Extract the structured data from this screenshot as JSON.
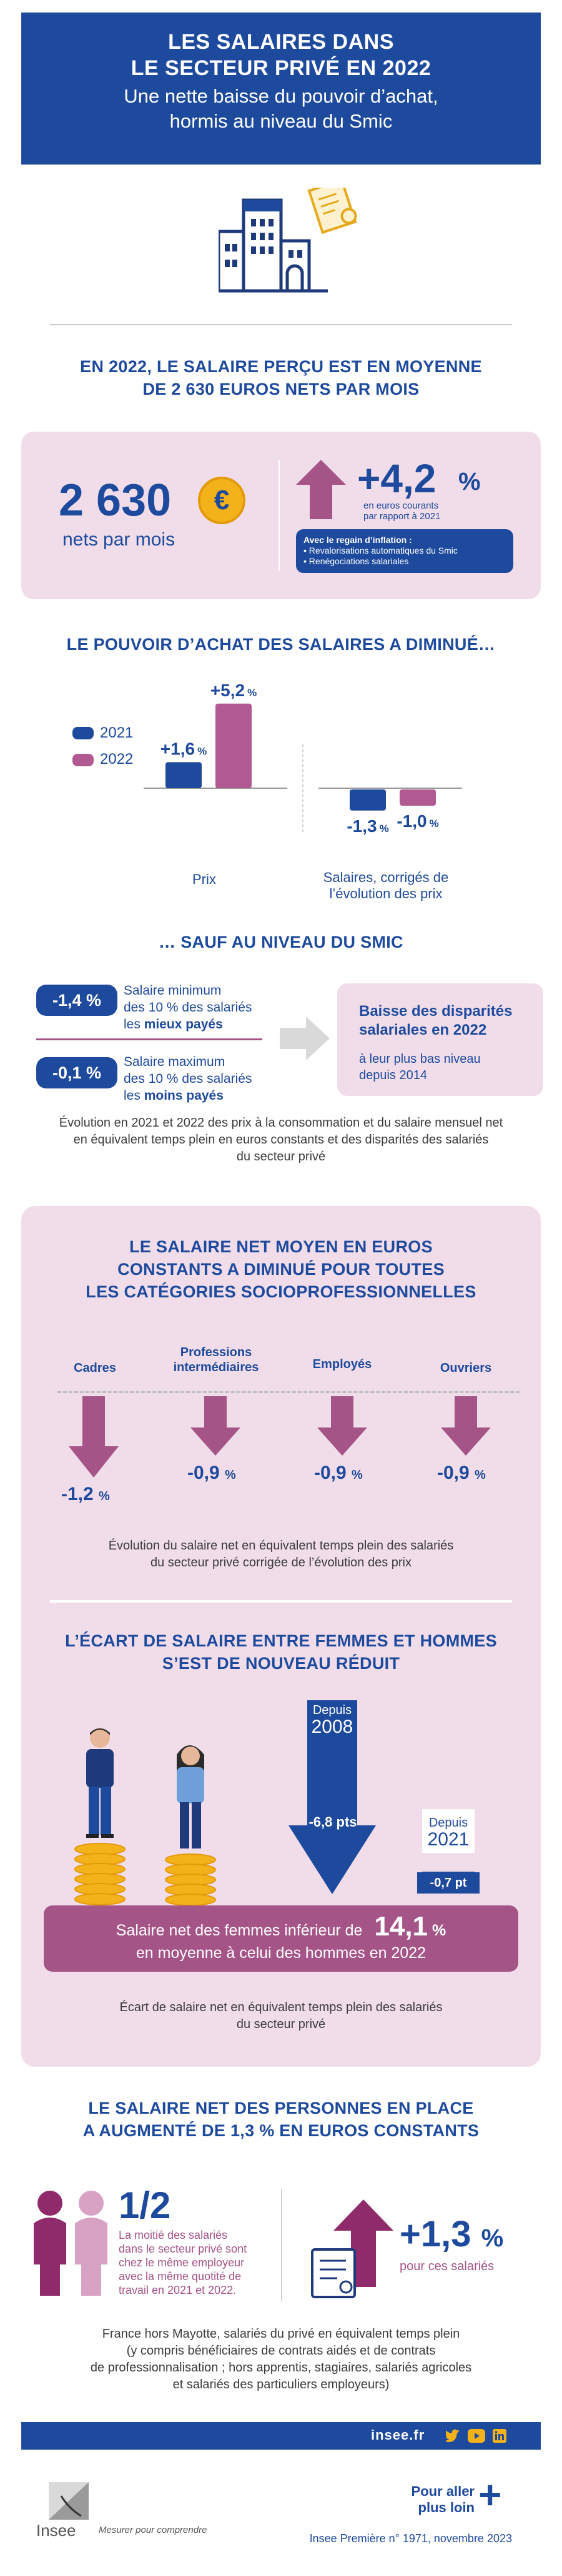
{
  "header": {
    "title_line1": "LES SALAIRES DANS",
    "title_line2": "LE SECTEUR PRIVÉ EN 2022",
    "subtitle_line1": "Une nette baisse du pouvoir d’achat,",
    "subtitle_line2": "hormis au niveau du Smic"
  },
  "section1": {
    "title_line1": "EN 2022, LE SALAIRE PERÇU EST EN MOYENNE",
    "title_line2": "DE 2 630 EUROS NETS PAR MOIS",
    "salary_value": "2 630",
    "salary_unit": "nets par mois",
    "euro_symbol": "€",
    "growth_value": "+4,2",
    "growth_pct": "%",
    "growth_note_line1": "en euros courants",
    "growth_note_line2": "par rapport à 2021",
    "inflation_box_title": "Avec le regain d’inflation :",
    "inflation_items": [
      "• Revalorisations automatiques du Smic",
      "• Renégociations salariales"
    ]
  },
  "section2": {
    "title": "LE POUVOIR D’ACHAT DES SALAIRES A DIMINUÉ…",
    "legend": [
      "2021",
      "2022"
    ],
    "categories": [
      "Prix",
      "Salaires, corrigés de",
      "l’évolution des prix"
    ],
    "labels": {
      "prix_2021": "+1,6",
      "prix_2022": "+5,2",
      "sal_2021": "-1,3",
      "sal_2022": "-1,0",
      "pct": "%"
    },
    "colors": {
      "2021": "#1e4a9d",
      "2022": "#b05a91"
    }
  },
  "chart_data": {
    "type": "bar",
    "categories": [
      "Prix",
      "Salaires, corrigés de l’évolution des prix"
    ],
    "series": [
      {
        "name": "2021",
        "values": [
          1.6,
          -1.3
        ]
      },
      {
        "name": "2022",
        "values": [
          5.2,
          -1.0
        ]
      }
    ],
    "title": "LE POUVOIR D’ACHAT DES SALAIRES A DIMINUÉ…"
  },
  "section3": {
    "title": "… SAUF AU NIVEAU DU SMIC",
    "row1_value": "-1,4 %",
    "row1_text_line1": "Salaire minimum",
    "row1_text_line2": "des 10 % des salariés",
    "row1_text_line3_pre": "les ",
    "row1_text_line3_bold": "mieux payés",
    "row2_value": "-0,1 %",
    "row2_text_line1": "Salaire maximum",
    "row2_text_line2": "des 10 % des salariés",
    "row2_text_line3_pre": "les ",
    "row2_text_line3_bold": "moins payés",
    "box_title_line1": "Baisse des disparités",
    "box_title_line2": "salariales en 2022",
    "box_text_line1": "à leur plus bas niveau",
    "box_text_line2": "depuis 2014",
    "note_line1": "Évolution en 2021 et 2022 des prix à la consommation et du salaire mensuel net",
    "note_line2": "en équivalent temps plein en euros constants et des disparités des salariés",
    "note_line3": "du secteur privé"
  },
  "section4": {
    "title_line1": "LE SALAIRE NET MOYEN EN EUROS",
    "title_line2": "CONSTANTS A DIMINUÉ POUR TOUTES",
    "title_line3": "LES CATÉGORIES SOCIOPROFESSIONNELLES",
    "cats": [
      {
        "label1": "Cadres",
        "label2": "",
        "value": "-1,2",
        "pct": "%"
      },
      {
        "label1": "Professions",
        "label2": "intermédiaires",
        "value": "-0,9",
        "pct": "%"
      },
      {
        "label1": "Employés",
        "label2": "",
        "value": "-0,9",
        "pct": "%"
      },
      {
        "label1": "Ouvriers",
        "label2": "",
        "value": "-0,9",
        "pct": "%"
      }
    ],
    "note_line1": "Évolution du salaire net en équivalent temps plein des salariés",
    "note_line2": "du secteur privé corrigée de l’évolution des prix"
  },
  "section5": {
    "title_line1": "L’ÉCART DE SALAIRE ENTRE FEMMES ET HOMMES",
    "title_line2": "S’EST DE NOUVEAU RÉDUIT",
    "since_2008_label": "Depuis",
    "since_2008_year": "2008",
    "since_2008_value": "-6,8 pts",
    "since_2021_label": "Depuis",
    "since_2021_year": "2021",
    "since_2021_value": "-0,7 pt",
    "banner_pre": "Salaire net des femmes inférieur de",
    "banner_value": "14,1",
    "banner_pct": "%",
    "banner_post": "en moyenne à celui des hommes en 2022",
    "note_line1": "Écart de salaire net en équivalent temps plein des salariés",
    "note_line2": "du secteur privé"
  },
  "section6": {
    "title_line1": "LE SALAIRE NET DES PERSONNES EN PLACE",
    "title_line2": "A AUGMENTÉ DE 1,3 % EN EUROS CONSTANTS",
    "half_value": "1/2",
    "half_text_line1": "La moitié des salariés",
    "half_text_line2": "dans le secteur privé sont",
    "half_text_line3": "chez le même employeur",
    "half_text_line4": "avec la même quotité de",
    "half_text_line5": "travail en 2021 et 2022.",
    "growth_value": "+1,3",
    "growth_pct": "%",
    "growth_note": "pour ces salariés",
    "note_line1": "France hors Mayotte, salariés du privé en équivalent temps plein",
    "note_line2": "(y compris bénéficiaires de contrats aidés et de contrats",
    "note_line3": "de professionnalisation ; hors apprentis, stagiaires, salariés agricoles",
    "note_line4": "et salariés des particuliers employeurs)"
  },
  "footer": {
    "site": "insee.fr",
    "logo_text": "Insee",
    "tagline": "Mesurer pour comprendre",
    "more_line1": "Pour aller",
    "more_line2": "plus loin",
    "more_icon": "+",
    "reference": "Insee Première n° 1971, novembre 2023",
    "social_icons": [
      "twitter-icon",
      "youtube-icon",
      "linkedin-icon"
    ]
  }
}
